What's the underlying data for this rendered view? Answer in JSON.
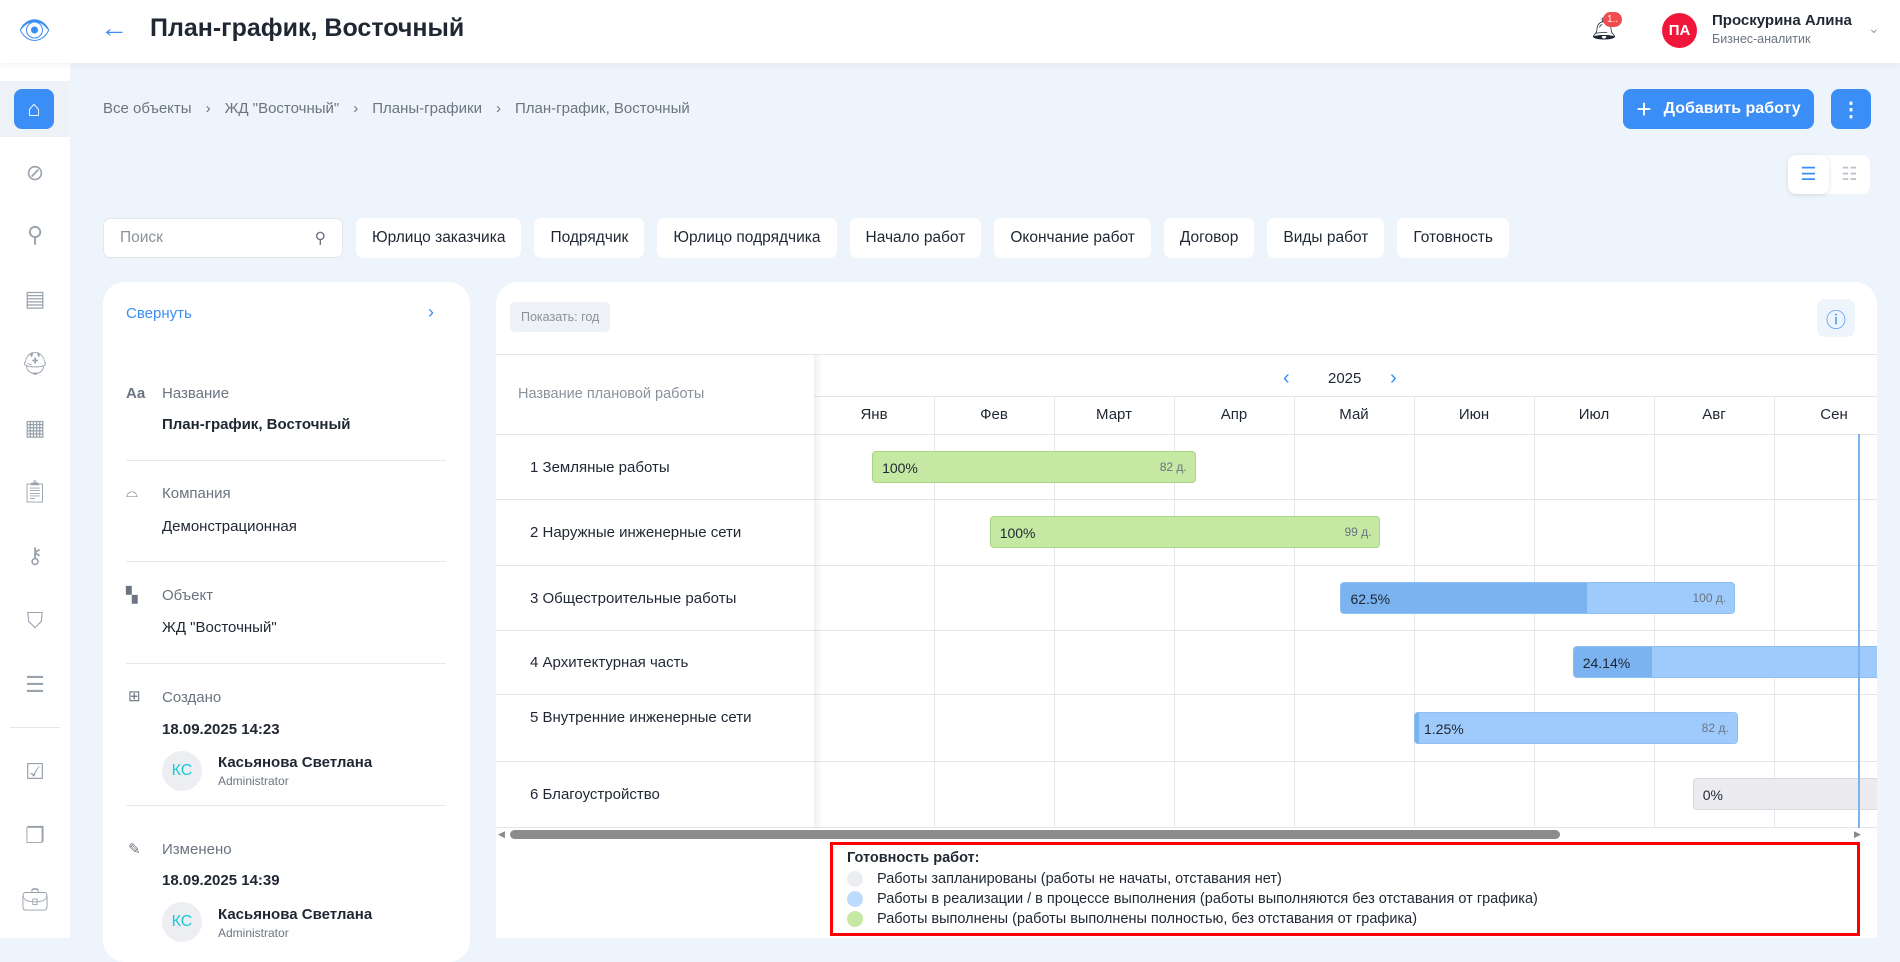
{
  "header": {
    "title": "План-график, Восточный",
    "notification_badge": "1..",
    "user": {
      "initials": "ПА",
      "name": "Проскурина Алина",
      "role": "Бизнес-аналитик"
    }
  },
  "breadcrumb": [
    "Все объекты",
    "ЖД \"Восточный\"",
    "Планы-графики",
    "План-график, Восточный"
  ],
  "toolbar": {
    "add_label": "Добавить работу"
  },
  "search": {
    "placeholder": "Поиск"
  },
  "filters": [
    "Юрлицо заказчика",
    "Подрядчик",
    "Юрлицо подрядчика",
    "Начало работ",
    "Окончание работ",
    "Договор",
    "Виды работ",
    "Готовность"
  ],
  "info_panel": {
    "collapse": "Свернуть",
    "fields": [
      {
        "label": "Название",
        "value": "План-график, Восточный"
      },
      {
        "label": "Компания",
        "value": "Демонстрационная"
      },
      {
        "label": "Объект",
        "value": "ЖД \"Восточный\""
      }
    ],
    "created": {
      "label": "Создано",
      "date": "18.09.2025 14:23",
      "user_initials": "КС",
      "user": "Касьянова Светлана",
      "role": "Administrator"
    },
    "modified": {
      "label": "Изменено",
      "date": "18.09.2025 14:39",
      "user_initials": "КС",
      "user": "Касьянова Светлана",
      "role": "Administrator"
    }
  },
  "gantt": {
    "show": "Показать: год",
    "column_header": "Название плановой работы",
    "year": "2025",
    "months": [
      "Янв",
      "Фев",
      "Март",
      "Апр",
      "Май",
      "Июн",
      "Июл",
      "Авг",
      "Сен"
    ],
    "today": "2025-09-22",
    "tasks": [
      {
        "name": "1 Земляные работы",
        "start": "2025-01-16",
        "duration": 82,
        "duration_label": "82 д.",
        "progress": 100,
        "progress_label": "100%",
        "status": "done"
      },
      {
        "name": "2 Наружные инженерные сети",
        "start": "2025-02-14",
        "duration": 99,
        "duration_label": "99 д.",
        "progress": 100,
        "progress_label": "100%",
        "status": "done"
      },
      {
        "name": "3 Общестроительные работы",
        "start": "2025-05-13",
        "duration": 100,
        "duration_label": "100 д.",
        "progress": 62.5,
        "progress_label": "62.5%",
        "status": "in_progress"
      },
      {
        "name": "4 Архитектурная часть",
        "start": "2025-07-11",
        "duration": null,
        "progress": 24.14,
        "progress_label": "24.14%",
        "status": "in_progress"
      },
      {
        "name": "5 Внутренние инженерные сети",
        "start": "2025-06-01",
        "duration": 82,
        "duration_label": "82 д.",
        "progress": 1.25,
        "progress_label": "1.25%",
        "status": "in_progress"
      },
      {
        "name": "6 Благоустройство",
        "start": "2025-08-11",
        "duration": null,
        "progress": 0,
        "progress_label": "0%",
        "status": "planned"
      }
    ]
  },
  "legend": {
    "title": "Готовность работ:",
    "items": [
      {
        "text": "Работы запланированы (работы не начаты, отставания нет)",
        "color": "#ebedf0"
      },
      {
        "text": "Работы в реализации / в процессе выполнения (работы выполняются без отставания от графика)",
        "color": "#bddcfd"
      },
      {
        "text": "Работы выполнены (работы выполнены полностью, без отставания от графика)",
        "color": "#c5e8a3"
      }
    ]
  },
  "colors": {
    "accent": "#3b8ef5",
    "done": "#c5e8a3",
    "in_progress": "#9ecbfb",
    "progress_fill": "#7ab3ef",
    "planned": "#ececf0",
    "avatar": "#f0173b"
  }
}
